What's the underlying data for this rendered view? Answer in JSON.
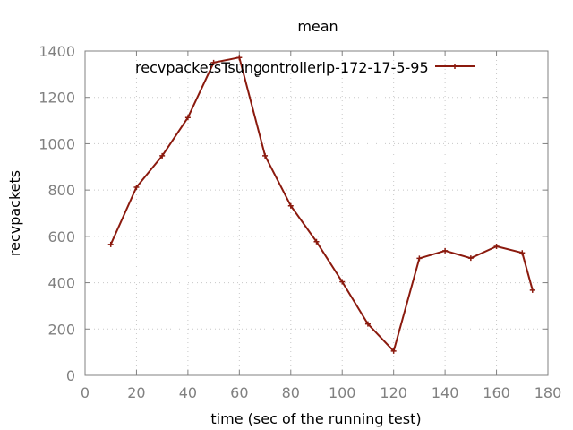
{
  "chart_data": {
    "type": "line",
    "title": "mean",
    "xlabel": "time (sec of the running test)",
    "ylabel": "recvpackets",
    "xlim": [
      0,
      180
    ],
    "ylim": [
      0,
      1400
    ],
    "xticks": [
      0,
      20,
      40,
      60,
      80,
      100,
      120,
      140,
      160,
      180
    ],
    "yticks": [
      0,
      200,
      400,
      600,
      800,
      1000,
      1200,
      1400
    ],
    "grid": true,
    "legend_position": "top-right",
    "legend": {
      "main": "recvpacketsTsung",
      "sub": "c",
      "tail": "ontrollerip-172-17-5-95"
    },
    "series": [
      {
        "name": "recvpacketsTsung_controllerip-172-17-5-95",
        "color": "#8b1a0e",
        "marker": "plus",
        "x": [
          10,
          20,
          30,
          40,
          50,
          60,
          70,
          80,
          90,
          100,
          110,
          120,
          130,
          140,
          150,
          160,
          170,
          174
        ],
        "y": [
          565,
          812,
          948,
          1113,
          1350,
          1372,
          948,
          732,
          577,
          404,
          222,
          105,
          505,
          538,
          506,
          557,
          529,
          368
        ]
      }
    ]
  }
}
